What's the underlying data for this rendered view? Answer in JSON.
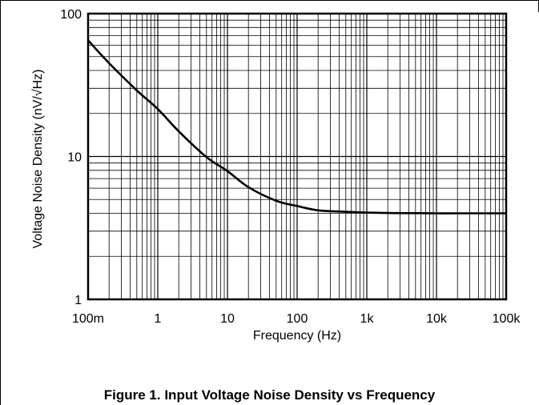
{
  "caption": "Figure 1. Input Voltage Noise Density vs Frequency",
  "chart_data": {
    "type": "line",
    "title": "",
    "xlabel": "Frequency (Hz)",
    "ylabel": "Voltage Noise Density (nV/√Hz)",
    "xscale": "log",
    "yscale": "log",
    "xlim": [
      0.1,
      100000
    ],
    "ylim": [
      1,
      100
    ],
    "grid": true,
    "legend": "none",
    "x_tick_values": [
      0.1,
      1,
      10,
      100,
      1000,
      10000,
      100000
    ],
    "x_tick_labels": [
      "100m",
      "1",
      "10",
      "100",
      "1k",
      "10k",
      "100k"
    ],
    "y_tick_values": [
      1,
      10,
      100
    ],
    "y_tick_labels": [
      "1",
      "10",
      "100"
    ],
    "series": [
      {
        "color": "#000000",
        "x": [
          0.1,
          0.2,
          0.5,
          1,
          2,
          5,
          10,
          20,
          50,
          100,
          200,
          500,
          1000,
          2000,
          5000,
          10000,
          20000,
          50000,
          100000
        ],
        "values": [
          65,
          45,
          29,
          21.5,
          15,
          9.9,
          7.9,
          6.1,
          4.9,
          4.5,
          4.2,
          4.1,
          4.05,
          4.02,
          4.01,
          4.0,
          4.0,
          4.0,
          4.0
        ]
      }
    ]
  }
}
